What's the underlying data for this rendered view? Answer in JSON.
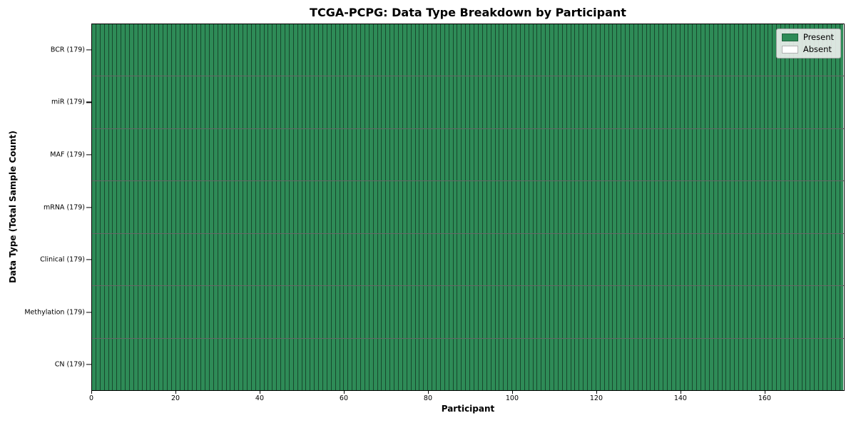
{
  "chart_data": {
    "type": "heatmap",
    "title": "TCGA-PCPG: Data Type Breakdown by Participant",
    "xlabel": "Participant",
    "ylabel": "Data Type (Total Sample Count)",
    "xlim": [
      0,
      179
    ],
    "x_ticks": [
      0,
      20,
      40,
      60,
      80,
      100,
      120,
      140,
      160
    ],
    "n_participants": 179,
    "rows": [
      {
        "label": "BCR (179)",
        "present_count": 179
      },
      {
        "label": "miR (179)",
        "present_count": 179
      },
      {
        "label": "MAF (179)",
        "present_count": 179
      },
      {
        "label": "mRNA (179)",
        "present_count": 179
      },
      {
        "label": "Clinical (179)",
        "present_count": 179
      },
      {
        "label": "Methylation (179)",
        "present_count": 179
      },
      {
        "label": "CN (179)",
        "present_count": 179
      }
    ],
    "legend": [
      {
        "label": "Present",
        "color": "#2e8b57"
      },
      {
        "label": "Absent",
        "color": "#ffffff"
      }
    ],
    "colors": {
      "present": "#2e8b57",
      "absent": "#ffffff"
    },
    "grid": false,
    "legend_position": "upper right"
  }
}
